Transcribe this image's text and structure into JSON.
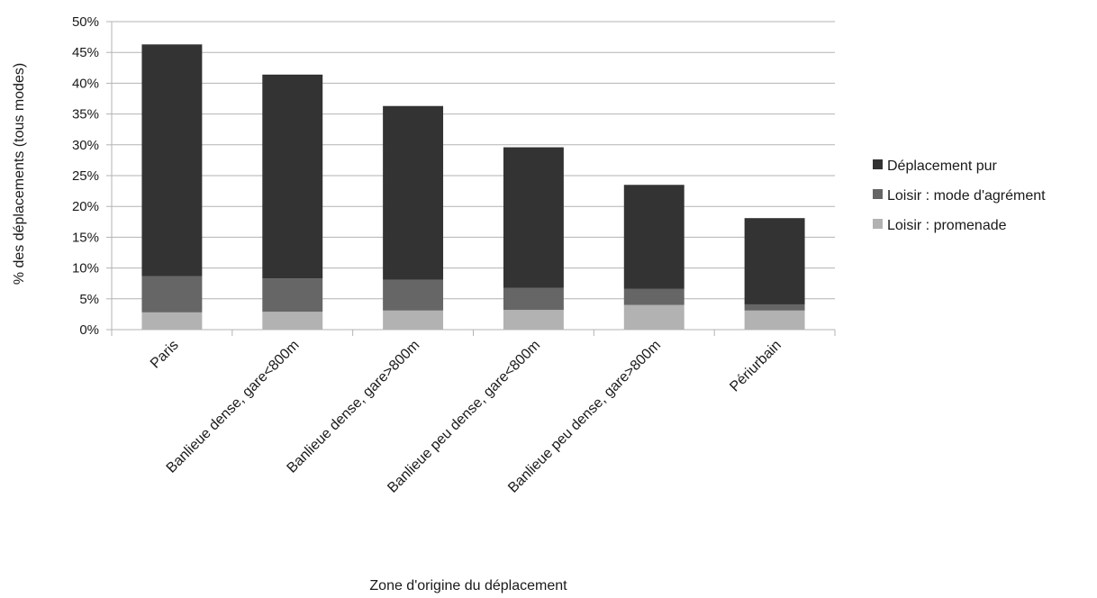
{
  "chart_data": {
    "type": "bar",
    "stacked": true,
    "title": "",
    "xlabel": "Zone d'origine du déplacement",
    "ylabel": "% des déplacements (tous modes)",
    "ylim": [
      0,
      50
    ],
    "yticks": [
      "0%",
      "5%",
      "10%",
      "15%",
      "20%",
      "25%",
      "30%",
      "35%",
      "40%",
      "45%",
      "50%"
    ],
    "grid": true,
    "legend_position": "right",
    "categories": [
      "Paris",
      "Banlieue dense, gare<800m",
      "Banlieue dense, gare>800m",
      "Banlieue peu dense, gare<800m",
      "Banlieue peu dense, gare>800m",
      "Périurbain"
    ],
    "series": [
      {
        "name": "Loisir : promenade",
        "color": "#b2b2b2",
        "values": [
          2.8,
          2.9,
          3.1,
          3.2,
          4.0,
          3.1
        ]
      },
      {
        "name": "Loisir : mode d'agrément",
        "color": "#666666",
        "values": [
          5.9,
          5.4,
          5.0,
          3.6,
          2.6,
          1.0
        ]
      },
      {
        "name": "Déplacement pur",
        "color": "#333333",
        "values": [
          37.6,
          33.1,
          28.2,
          22.8,
          16.9,
          14.0
        ]
      }
    ],
    "legend_order": [
      "Déplacement pur",
      "Loisir : mode d'agrément",
      "Loisir : promenade"
    ]
  }
}
